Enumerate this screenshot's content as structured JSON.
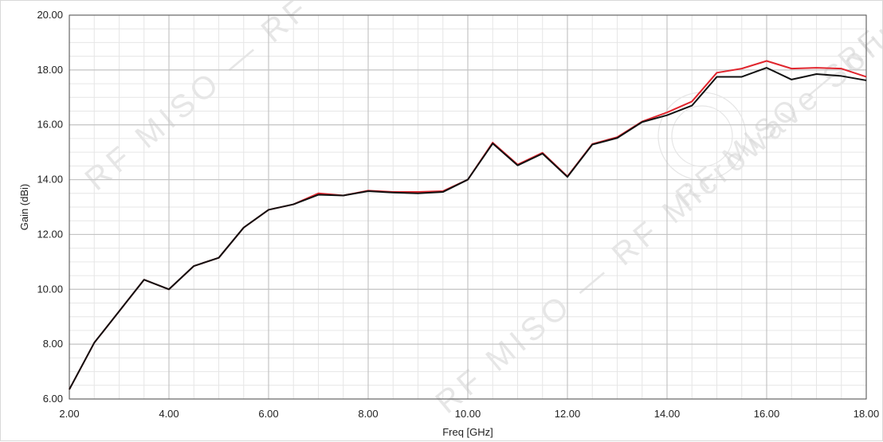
{
  "chart_data": {
    "type": "line",
    "title": "",
    "xlabel": "Freq [GHz]",
    "ylabel": "Gain (dBi)",
    "xlim": [
      2,
      18
    ],
    "ylim": [
      6,
      20
    ],
    "x_major_step": 2,
    "x_minor_step": 0.5,
    "y_major_step": 2,
    "y_minor_step": 0.5,
    "grid": true,
    "x_tick_labels": [
      "2.00",
      "4.00",
      "6.00",
      "8.00",
      "10.00",
      "12.00",
      "14.00",
      "16.00",
      "18.00"
    ],
    "y_tick_labels": [
      "6.00",
      "8.00",
      "10.00",
      "12.00",
      "14.00",
      "16.00",
      "18.00",
      "20.00"
    ],
    "watermark": "RF MISO — RF Microwave Solution",
    "series": [
      {
        "color": "#e0262e",
        "x": [
          2.0,
          2.5,
          3.0,
          3.5,
          4.0,
          4.5,
          5.0,
          5.5,
          6.0,
          6.5,
          7.0,
          7.5,
          8.0,
          8.5,
          9.0,
          9.5,
          10.0,
          10.5,
          11.0,
          11.5,
          12.0,
          12.5,
          13.0,
          13.5,
          14.0,
          14.5,
          15.0,
          15.5,
          16.0,
          16.5,
          17.0,
          17.5,
          18.0
        ],
        "y": [
          6.35,
          8.05,
          9.2,
          10.35,
          10.0,
          10.85,
          11.15,
          12.25,
          12.9,
          13.1,
          13.5,
          13.42,
          13.6,
          13.55,
          13.55,
          13.58,
          14.0,
          15.35,
          14.55,
          14.98,
          14.12,
          15.3,
          15.55,
          16.12,
          16.45,
          16.85,
          17.9,
          18.05,
          18.33,
          18.05,
          18.08,
          18.05,
          17.75
        ]
      },
      {
        "color": "#111111",
        "x": [
          2.0,
          2.5,
          3.0,
          3.5,
          4.0,
          4.5,
          5.0,
          5.5,
          6.0,
          6.5,
          7.0,
          7.5,
          8.0,
          8.5,
          9.0,
          9.5,
          10.0,
          10.5,
          11.0,
          11.5,
          12.0,
          12.5,
          13.0,
          13.5,
          14.0,
          14.5,
          15.0,
          15.5,
          16.0,
          16.5,
          17.0,
          17.5,
          18.0
        ],
        "y": [
          6.35,
          8.05,
          9.2,
          10.35,
          10.0,
          10.85,
          11.15,
          12.25,
          12.9,
          13.1,
          13.45,
          13.42,
          13.58,
          13.53,
          13.5,
          13.55,
          14.0,
          15.32,
          14.52,
          14.95,
          14.1,
          15.28,
          15.52,
          16.1,
          16.35,
          16.7,
          17.75,
          17.75,
          18.08,
          17.65,
          17.85,
          17.78,
          17.62
        ]
      }
    ]
  }
}
